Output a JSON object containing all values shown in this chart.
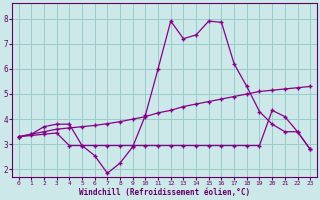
{
  "xlabel": "Windchill (Refroidissement éolien,°C)",
  "bg_color": "#cce8e8",
  "line_color": "#880088",
  "grid_color": "#99cccc",
  "spine_color": "#660066",
  "xlim": [
    -0.5,
    23.5
  ],
  "ylim": [
    1.7,
    8.6
  ],
  "yticks": [
    2,
    3,
    4,
    5,
    6,
    7,
    8
  ],
  "xticks": [
    0,
    1,
    2,
    3,
    4,
    5,
    6,
    7,
    8,
    9,
    10,
    11,
    12,
    13,
    14,
    15,
    16,
    17,
    18,
    19,
    20,
    21,
    22,
    23
  ],
  "curve1_x": [
    0,
    1,
    2,
    3,
    4,
    5,
    6,
    7,
    8,
    9,
    10,
    11,
    12,
    13,
    14,
    15,
    16,
    17,
    18,
    19,
    20,
    21,
    22,
    23
  ],
  "curve1_y": [
    3.3,
    3.4,
    3.7,
    3.8,
    3.8,
    2.95,
    2.55,
    1.85,
    2.25,
    2.9,
    4.15,
    6.0,
    7.9,
    7.2,
    7.35,
    7.9,
    7.85,
    6.2,
    5.3,
    4.3,
    3.8,
    3.5,
    3.5,
    2.8
  ],
  "curve2_x": [
    0,
    1,
    2,
    3,
    4,
    5,
    6,
    7,
    8,
    9,
    10,
    11,
    12,
    13,
    14,
    15,
    16,
    17,
    18,
    19,
    20,
    21,
    22,
    23
  ],
  "curve2_y": [
    3.3,
    3.4,
    3.5,
    3.6,
    3.65,
    3.7,
    3.75,
    3.82,
    3.9,
    4.0,
    4.1,
    4.25,
    4.35,
    4.5,
    4.6,
    4.7,
    4.8,
    4.9,
    5.0,
    5.1,
    5.15,
    5.2,
    5.25,
    5.3
  ],
  "curve3_x": [
    0,
    1,
    2,
    3,
    4,
    5,
    6,
    7,
    8,
    9,
    10,
    11,
    12,
    13,
    14,
    15,
    16,
    17,
    18,
    19,
    20,
    21,
    22,
    23
  ],
  "curve3_y": [
    3.3,
    3.35,
    3.4,
    3.45,
    2.95,
    2.95,
    2.95,
    2.95,
    2.95,
    2.95,
    2.95,
    2.95,
    2.95,
    2.95,
    2.95,
    2.95,
    2.95,
    2.95,
    2.95,
    2.95,
    4.35,
    4.1,
    3.5,
    2.8
  ]
}
